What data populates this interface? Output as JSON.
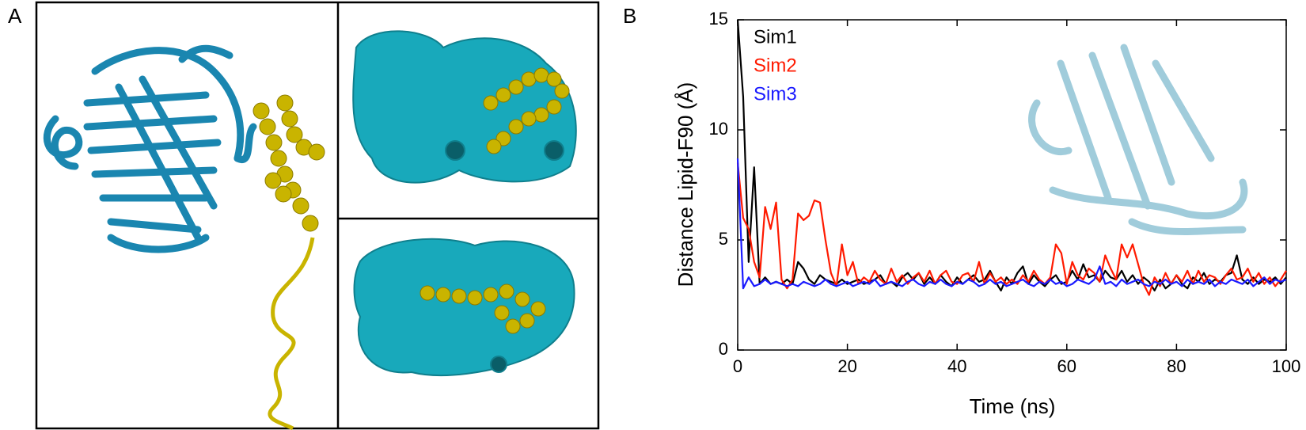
{
  "panel_labels": [
    "A",
    "B"
  ],
  "chart_data": {
    "type": "line",
    "x_label": "Time (ns)",
    "y_label": "Distance Lipid-F90 (Å)",
    "xlim": [
      0,
      100
    ],
    "xticks": [
      0,
      20,
      40,
      60,
      80,
      100
    ],
    "ylim": [
      0,
      15
    ],
    "yticks": [
      0,
      5,
      10,
      15
    ],
    "x": [
      0,
      1,
      2,
      3,
      4,
      5,
      6,
      7,
      8,
      9,
      10,
      11,
      12,
      13,
      14,
      15,
      16,
      17,
      18,
      19,
      20,
      21,
      22,
      23,
      24,
      25,
      26,
      27,
      28,
      29,
      30,
      31,
      32,
      33,
      34,
      35,
      36,
      37,
      38,
      39,
      40,
      41,
      42,
      43,
      44,
      45,
      46,
      47,
      48,
      49,
      50,
      51,
      52,
      53,
      54,
      55,
      56,
      57,
      58,
      59,
      60,
      61,
      62,
      63,
      64,
      65,
      66,
      67,
      68,
      69,
      70,
      71,
      72,
      73,
      74,
      75,
      76,
      77,
      78,
      79,
      80,
      81,
      82,
      83,
      84,
      85,
      86,
      87,
      88,
      89,
      90,
      91,
      92,
      93,
      94,
      95,
      96,
      97,
      98,
      99,
      100
    ],
    "series": [
      {
        "name": "Sim1",
        "color": "#000000",
        "values": [
          15,
          11.5,
          4,
          8.3,
          3,
          3.3,
          3,
          3.1,
          3,
          3.2,
          3,
          4,
          3.7,
          3.2,
          3,
          3.4,
          3.2,
          3.1,
          3,
          3.2,
          3,
          3.1,
          3.2,
          3,
          3.1,
          3.2,
          3.4,
          3,
          3.1,
          2.9,
          3.3,
          3.5,
          3.2,
          3.5,
          3,
          3.3,
          3,
          3.4,
          3.1,
          2.9,
          3.3,
          3,
          3.2,
          3.4,
          3.1,
          3.2,
          3.6,
          3.1,
          2.7,
          3.3,
          3,
          3.5,
          3.8,
          3,
          3.4,
          3.1,
          2.9,
          3.2,
          3.4,
          3,
          3.1,
          3.6,
          3.2,
          3.9,
          3.3,
          3.4,
          3.1,
          3.6,
          3.3,
          3.2,
          3.6,
          3.1,
          3.4,
          3,
          3.3,
          3.1,
          2.7,
          3.2,
          2.8,
          3,
          3.4,
          3,
          2.8,
          3.3,
          3.1,
          3.5,
          3,
          3.2,
          3.1,
          3.4,
          3.5,
          4.3,
          3.2,
          3,
          3.3,
          3,
          3.2,
          3.1,
          3.3,
          3,
          3.3
        ]
      },
      {
        "name": "Sim2",
        "color": "#ff1a00",
        "values": [
          8.5,
          6,
          5.5,
          4,
          3.3,
          6.5,
          5.5,
          6.7,
          3.2,
          2.8,
          3.2,
          6.2,
          5.9,
          6.1,
          6.8,
          6.7,
          5,
          3.5,
          2.9,
          4.8,
          3.4,
          4,
          3,
          3.3,
          3.1,
          3.6,
          3.2,
          3,
          3.7,
          3.1,
          3.4,
          3,
          3.3,
          3.5,
          3.1,
          3.6,
          3,
          3.4,
          3.6,
          3.1,
          3,
          3.4,
          3.5,
          3.1,
          4,
          3,
          3.5,
          3.1,
          3.3,
          3,
          3.2,
          3,
          3.4,
          3.1,
          3.6,
          3.2,
          3,
          3.3,
          4.8,
          4.4,
          3,
          4,
          3.4,
          3.2,
          3.7,
          3.5,
          3.1,
          4.3,
          3.7,
          3.2,
          4.8,
          4.2,
          4.8,
          3.9,
          3,
          2.5,
          3.3,
          2.9,
          3.5,
          3,
          3.4,
          3.1,
          3.6,
          3,
          3.6,
          3.1,
          3.4,
          3.3,
          3,
          3.4,
          3.7,
          3.2,
          3.3,
          3.7,
          3.1,
          3.5,
          3,
          3.3,
          2.9,
          3.2,
          3.6
        ]
      },
      {
        "name": "Sim3",
        "color": "#1a1aff",
        "values": [
          8.7,
          2.8,
          3.3,
          2.9,
          3,
          3.2,
          3,
          3.1,
          3,
          2.9,
          3,
          2.9,
          3.1,
          3,
          2.9,
          3,
          3.2,
          3,
          2.9,
          3,
          3.1,
          2.9,
          3,
          3.1,
          3,
          3.2,
          2.9,
          3,
          3.1,
          3,
          2.9,
          3.1,
          3.2,
          3,
          2.9,
          3.1,
          3,
          3.2,
          3,
          2.9,
          3.1,
          3,
          3.2,
          3.1,
          2.9,
          3,
          3.2,
          3,
          3.1,
          2.9,
          3,
          3.1,
          3.2,
          3,
          2.9,
          3.1,
          3,
          3.2,
          3,
          3.1,
          2.9,
          3,
          3.2,
          3.1,
          3,
          3.2,
          3.8,
          3,
          3.1,
          2.9,
          3.2,
          3,
          3.1,
          3.2,
          3,
          2.9,
          3.1,
          3,
          3.2,
          3,
          3.1,
          2.9,
          3.2,
          3,
          3.1,
          3,
          3.2,
          2.9,
          3.1,
          3,
          3.2,
          3.1,
          3,
          3.2,
          2.9,
          3.1,
          3.3,
          3,
          3.2,
          3.1,
          3.2
        ]
      }
    ]
  }
}
